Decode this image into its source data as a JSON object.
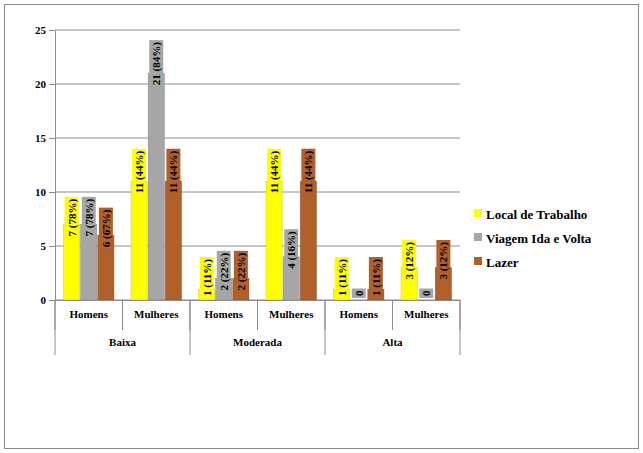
{
  "chart_data": {
    "type": "bar",
    "categories": [
      "Homens",
      "Mulheres",
      "Homens",
      "Mulheres",
      "Homens",
      "Mulheres"
    ],
    "category_groups": [
      "Baixa",
      "Moderada",
      "Alta"
    ],
    "series": [
      {
        "name": "Local de Trabalho",
        "color": "#ffff00",
        "values": [
          7,
          11,
          1,
          11,
          1,
          3
        ],
        "value_labels": [
          "7 (78%)",
          "11 (44%)",
          "1 (11%)",
          "11 (44%)",
          "1 (11%)",
          "3 (12%)"
        ]
      },
      {
        "name": "Viagem Ida e Volta",
        "color": "#a6a6a6",
        "values": [
          7,
          21,
          2,
          4,
          0,
          0
        ],
        "value_labels": [
          "7 (78%)",
          "21 (84%)",
          "2 (22%)",
          "4 (16%)",
          "0",
          "0"
        ]
      },
      {
        "name": "Lazer",
        "color": "#b0602a",
        "values": [
          6,
          11,
          2,
          11,
          1,
          3
        ],
        "value_labels": [
          "6 (67%)",
          "11 (44%)",
          "2 (22%)",
          "11 (44%)",
          "1 (11%)",
          "3 (12%)"
        ]
      }
    ],
    "ylim": [
      0,
      25
    ],
    "yticks": [
      0,
      5,
      10,
      15,
      20,
      25
    ],
    "grid": true,
    "legend": "right",
    "data_labels": true
  }
}
